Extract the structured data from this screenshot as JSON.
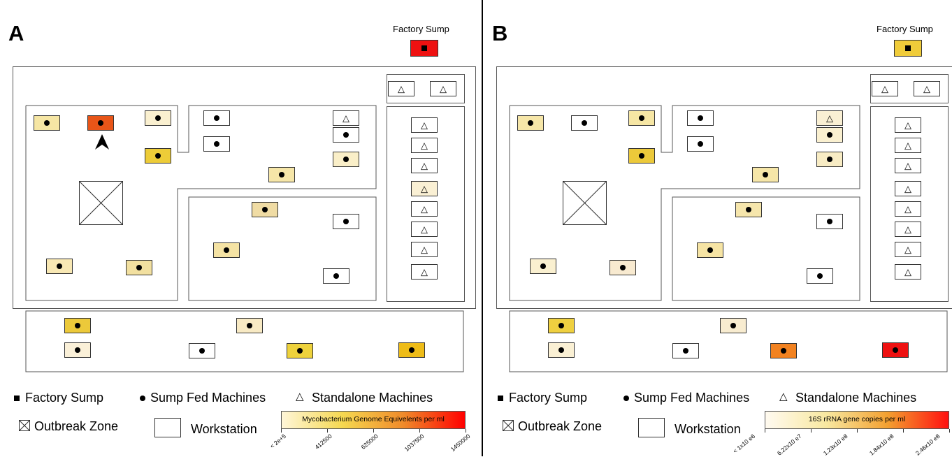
{
  "panels": [
    {
      "label": "A",
      "sump_title": "Factory Sump",
      "colors": {
        "sump": "#ee1111",
        "fed": [
          "#f6e6a4",
          "#e85518",
          "#faf0d0",
          "#edcc38",
          "#ffffff",
          "#ffffff",
          "#ffffff",
          "#faefc8",
          "#f6e6a8",
          "#f0dca4",
          "#ffffff",
          "#f5e3a4",
          "#ffffff",
          "#f8e8b4",
          "#f2e0a0",
          "#ecc93a",
          "#f8eac4",
          "#faf0d8",
          "#ffffff",
          "#eed23c",
          "#eebc18",
          "#f3df94"
        ],
        "standalone": [
          "#ffffff",
          "#ffffff",
          "#ffffff",
          "#ffffff",
          "#ffffff",
          "#ffffff",
          "#faf0d4",
          "#ffffff",
          "#ffffff",
          "#ffffff",
          "#ffffff",
          "#ffffff"
        ]
      },
      "colorbar": {
        "title": "Mycobacterium Genome Equivelents per ml",
        "ticks": [
          "< 2e+5",
          "412500",
          "625000",
          "1037500",
          "1450000"
        ],
        "gradient": [
          "#fff6d8",
          "#f5d850",
          "#f08a2a",
          "#ff0000"
        ]
      }
    },
    {
      "label": "B",
      "sump_title": "Factory Sump",
      "colors": {
        "sump": "#f0cc3a",
        "fed": [
          "#f6e6a8",
          "#ffffff",
          "#f6e6a4",
          "#ecc93a",
          "#ffffff",
          "#ffffff",
          "#faf0d0",
          "#f8ecc4",
          "#f6e6a8",
          "#f6e6ac",
          "#ffffff",
          "#f6e4a4",
          "#ffffff",
          "#faf0d0",
          "#f8ead0",
          "#efd040",
          "#f8ecd0",
          "#faf0d4",
          "#ffffff",
          "#f28220",
          "#ee1111",
          "#f6e4a4"
        ],
        "standalone": [
          "#ffffff",
          "#ffffff",
          "#faf0d4",
          "#ffffff",
          "#ffffff",
          "#ffffff",
          "#ffffff",
          "#ffffff",
          "#ffffff",
          "#ffffff",
          "#ffffff",
          "#ffffff"
        ]
      },
      "colorbar": {
        "title": "16S rRNA gene copies per ml",
        "ticks": [
          "< 1x10 e6",
          "6.22x10 e7",
          "1.23x10 e8",
          "1.84x10 e8",
          "2.46x10 e8"
        ],
        "gradient": [
          "#fffaf0",
          "#f8e8a0",
          "#f3a030",
          "#ff1010"
        ]
      }
    }
  ],
  "legend": {
    "factory_sump": "Factory Sump",
    "sump_fed": "Sump Fed Machines",
    "standalone": "Standalone Machines",
    "outbreak": "Outbreak Zone",
    "workstation": "Workstation"
  },
  "icons": {
    "factory_sump": "square-icon",
    "sump_fed": "dot-icon",
    "standalone": "triangle-icon",
    "outbreak": "crossed-box-icon",
    "workstation": "empty-box-icon",
    "arrow": "arrowhead-icon"
  }
}
